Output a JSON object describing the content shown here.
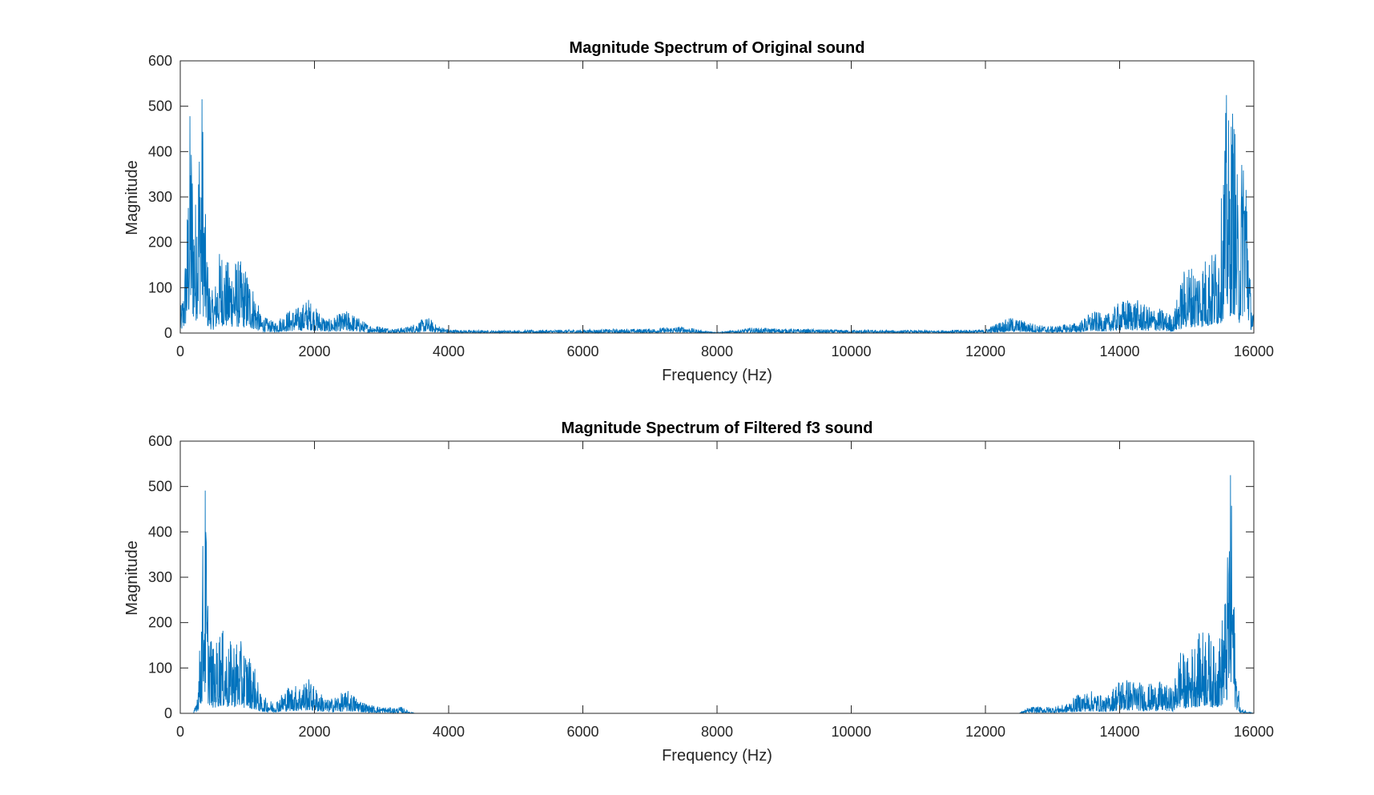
{
  "figure": {
    "background": "#ffffff",
    "series_color": "#0072BD",
    "axis_color": "#262626"
  },
  "chart_data": [
    {
      "type": "line",
      "title": "Magnitude Spectrum of Original sound",
      "xlabel": "Frequency (Hz)",
      "ylabel": "Magnitude",
      "xlim": [
        0,
        16000
      ],
      "ylim": [
        0,
        600
      ],
      "xticks": [
        0,
        2000,
        4000,
        6000,
        8000,
        10000,
        12000,
        14000,
        16000
      ],
      "xtick_labels": [
        "0",
        "2000",
        "4000",
        "6000",
        "8000",
        "10000",
        "12000",
        "14000",
        "16000"
      ],
      "yticks": [
        0,
        100,
        200,
        300,
        400,
        500,
        600
      ],
      "ytick_labels": [
        "0",
        "100",
        "200",
        "300",
        "400",
        "500",
        "600"
      ],
      "grid": false,
      "series": [
        {
          "x": [
            0,
            50,
            100,
            150,
            180,
            220,
            260,
            300,
            330,
            360,
            400,
            450,
            500,
            600,
            700,
            800,
            900,
            1000,
            1100,
            1200,
            1400,
            1600,
            1800,
            1900,
            2000,
            2200,
            2400,
            2500,
            2600,
            2800,
            3000,
            3200,
            3400,
            3600,
            3700,
            3800,
            4000,
            4500,
            5000,
            6000,
            7000,
            7500,
            7800,
            8000,
            8200,
            8500,
            9000,
            10000,
            11000,
            12000,
            12200,
            12400,
            12800,
            13000,
            13400,
            13600,
            13800,
            14000,
            14200,
            14400,
            14600,
            14800,
            14900,
            15000,
            15100,
            15200,
            15300,
            15400,
            15500,
            15600,
            15640,
            15670,
            15700,
            15740,
            15780,
            15820,
            15850,
            15900,
            15950,
            16000
          ],
          "y": [
            50,
            100,
            260,
            530,
            420,
            280,
            420,
            520,
            560,
            320,
            180,
            100,
            90,
            200,
            160,
            170,
            160,
            140,
            100,
            40,
            25,
            50,
            60,
            80,
            60,
            30,
            45,
            50,
            40,
            20,
            15,
            10,
            15,
            30,
            35,
            20,
            8,
            6,
            6,
            8,
            10,
            15,
            5,
            2,
            5,
            12,
            10,
            7,
            6,
            8,
            25,
            35,
            18,
            15,
            25,
            50,
            40,
            70,
            80,
            60,
            55,
            40,
            110,
            160,
            150,
            160,
            175,
            180,
            250,
            555,
            430,
            520,
            520,
            400,
            250,
            400,
            530,
            380,
            100,
            40
          ]
        }
      ]
    },
    {
      "type": "line",
      "title": "Magnitude Spectrum of Filtered f3 sound",
      "xlabel": "Frequency (Hz)",
      "ylabel": "Magnitude",
      "xlim": [
        0,
        16000
      ],
      "ylim": [
        0,
        600
      ],
      "xticks": [
        0,
        2000,
        4000,
        6000,
        8000,
        10000,
        12000,
        14000,
        16000
      ],
      "xtick_labels": [
        "0",
        "2000",
        "4000",
        "6000",
        "8000",
        "10000",
        "12000",
        "14000",
        "16000"
      ],
      "yticks": [
        0,
        100,
        200,
        300,
        400,
        500,
        600
      ],
      "ytick_labels": [
        "0",
        "100",
        "200",
        "300",
        "400",
        "500",
        "600"
      ],
      "grid": false,
      "series": [
        {
          "x": [
            0,
            200,
            230,
            260,
            290,
            320,
            340,
            360,
            380,
            400,
            450,
            500,
            600,
            700,
            800,
            900,
            1000,
            1100,
            1200,
            1400,
            1600,
            1800,
            1900,
            2000,
            2200,
            2400,
            2500,
            2600,
            2800,
            3000,
            3200,
            3300,
            3350,
            3400,
            3500,
            4000,
            8000,
            12000,
            12500,
            12600,
            12700,
            13000,
            13200,
            13400,
            13600,
            13800,
            14000,
            14200,
            14400,
            14600,
            14800,
            14900,
            15000,
            15100,
            15200,
            15300,
            15400,
            15500,
            15550,
            15600,
            15620,
            15650,
            15680,
            15700,
            15730,
            15770,
            15800,
            16000
          ],
          "y": [
            0,
            0,
            30,
            60,
            150,
            280,
            420,
            480,
            535,
            300,
            190,
            140,
            200,
            150,
            170,
            160,
            140,
            110,
            40,
            25,
            60,
            65,
            80,
            60,
            30,
            45,
            50,
            40,
            20,
            15,
            12,
            15,
            10,
            5,
            0,
            0,
            0,
            0,
            0,
            10,
            15,
            15,
            20,
            45,
            50,
            35,
            80,
            75,
            65,
            70,
            55,
            150,
            120,
            160,
            180,
            200,
            150,
            180,
            250,
            300,
            430,
            535,
            490,
            300,
            120,
            60,
            10,
            0
          ]
        }
      ]
    }
  ]
}
